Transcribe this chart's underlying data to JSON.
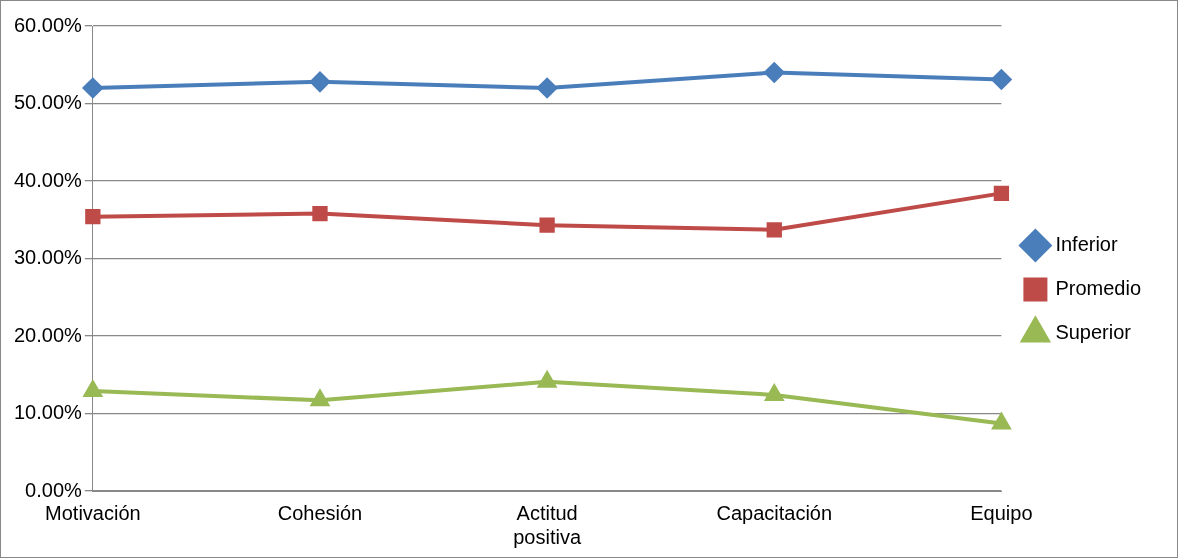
{
  "chart_data": {
    "type": "line",
    "categories": [
      "Motivación",
      "Cohesión",
      "Actitud positiva",
      "Capacitación",
      "Equipo"
    ],
    "series": [
      {
        "name": "Inferior",
        "color": "#4a7ebb",
        "marker": "diamond",
        "values": [
          52.0,
          52.8,
          52.0,
          54.0,
          53.1
        ]
      },
      {
        "name": "Promedio",
        "color": "#be4b48",
        "marker": "square",
        "values": [
          35.4,
          35.8,
          34.3,
          33.7,
          38.4
        ]
      },
      {
        "name": "Superior",
        "color": "#98b954",
        "marker": "triangle",
        "values": [
          12.9,
          11.7,
          14.1,
          12.4,
          8.7
        ]
      }
    ],
    "ylim": [
      0,
      60
    ],
    "yticks": [
      {
        "value": 0,
        "label": "0.00%"
      },
      {
        "value": 10,
        "label": "10.00%"
      },
      {
        "value": 20,
        "label": "20.00%"
      },
      {
        "value": 30,
        "label": "30.00%"
      },
      {
        "value": 40,
        "label": "40.00%"
      },
      {
        "value": 50,
        "label": "50.00%"
      },
      {
        "value": 60,
        "label": "60.00%"
      }
    ],
    "grid": "y",
    "legend": "right",
    "line_style": "solid"
  }
}
